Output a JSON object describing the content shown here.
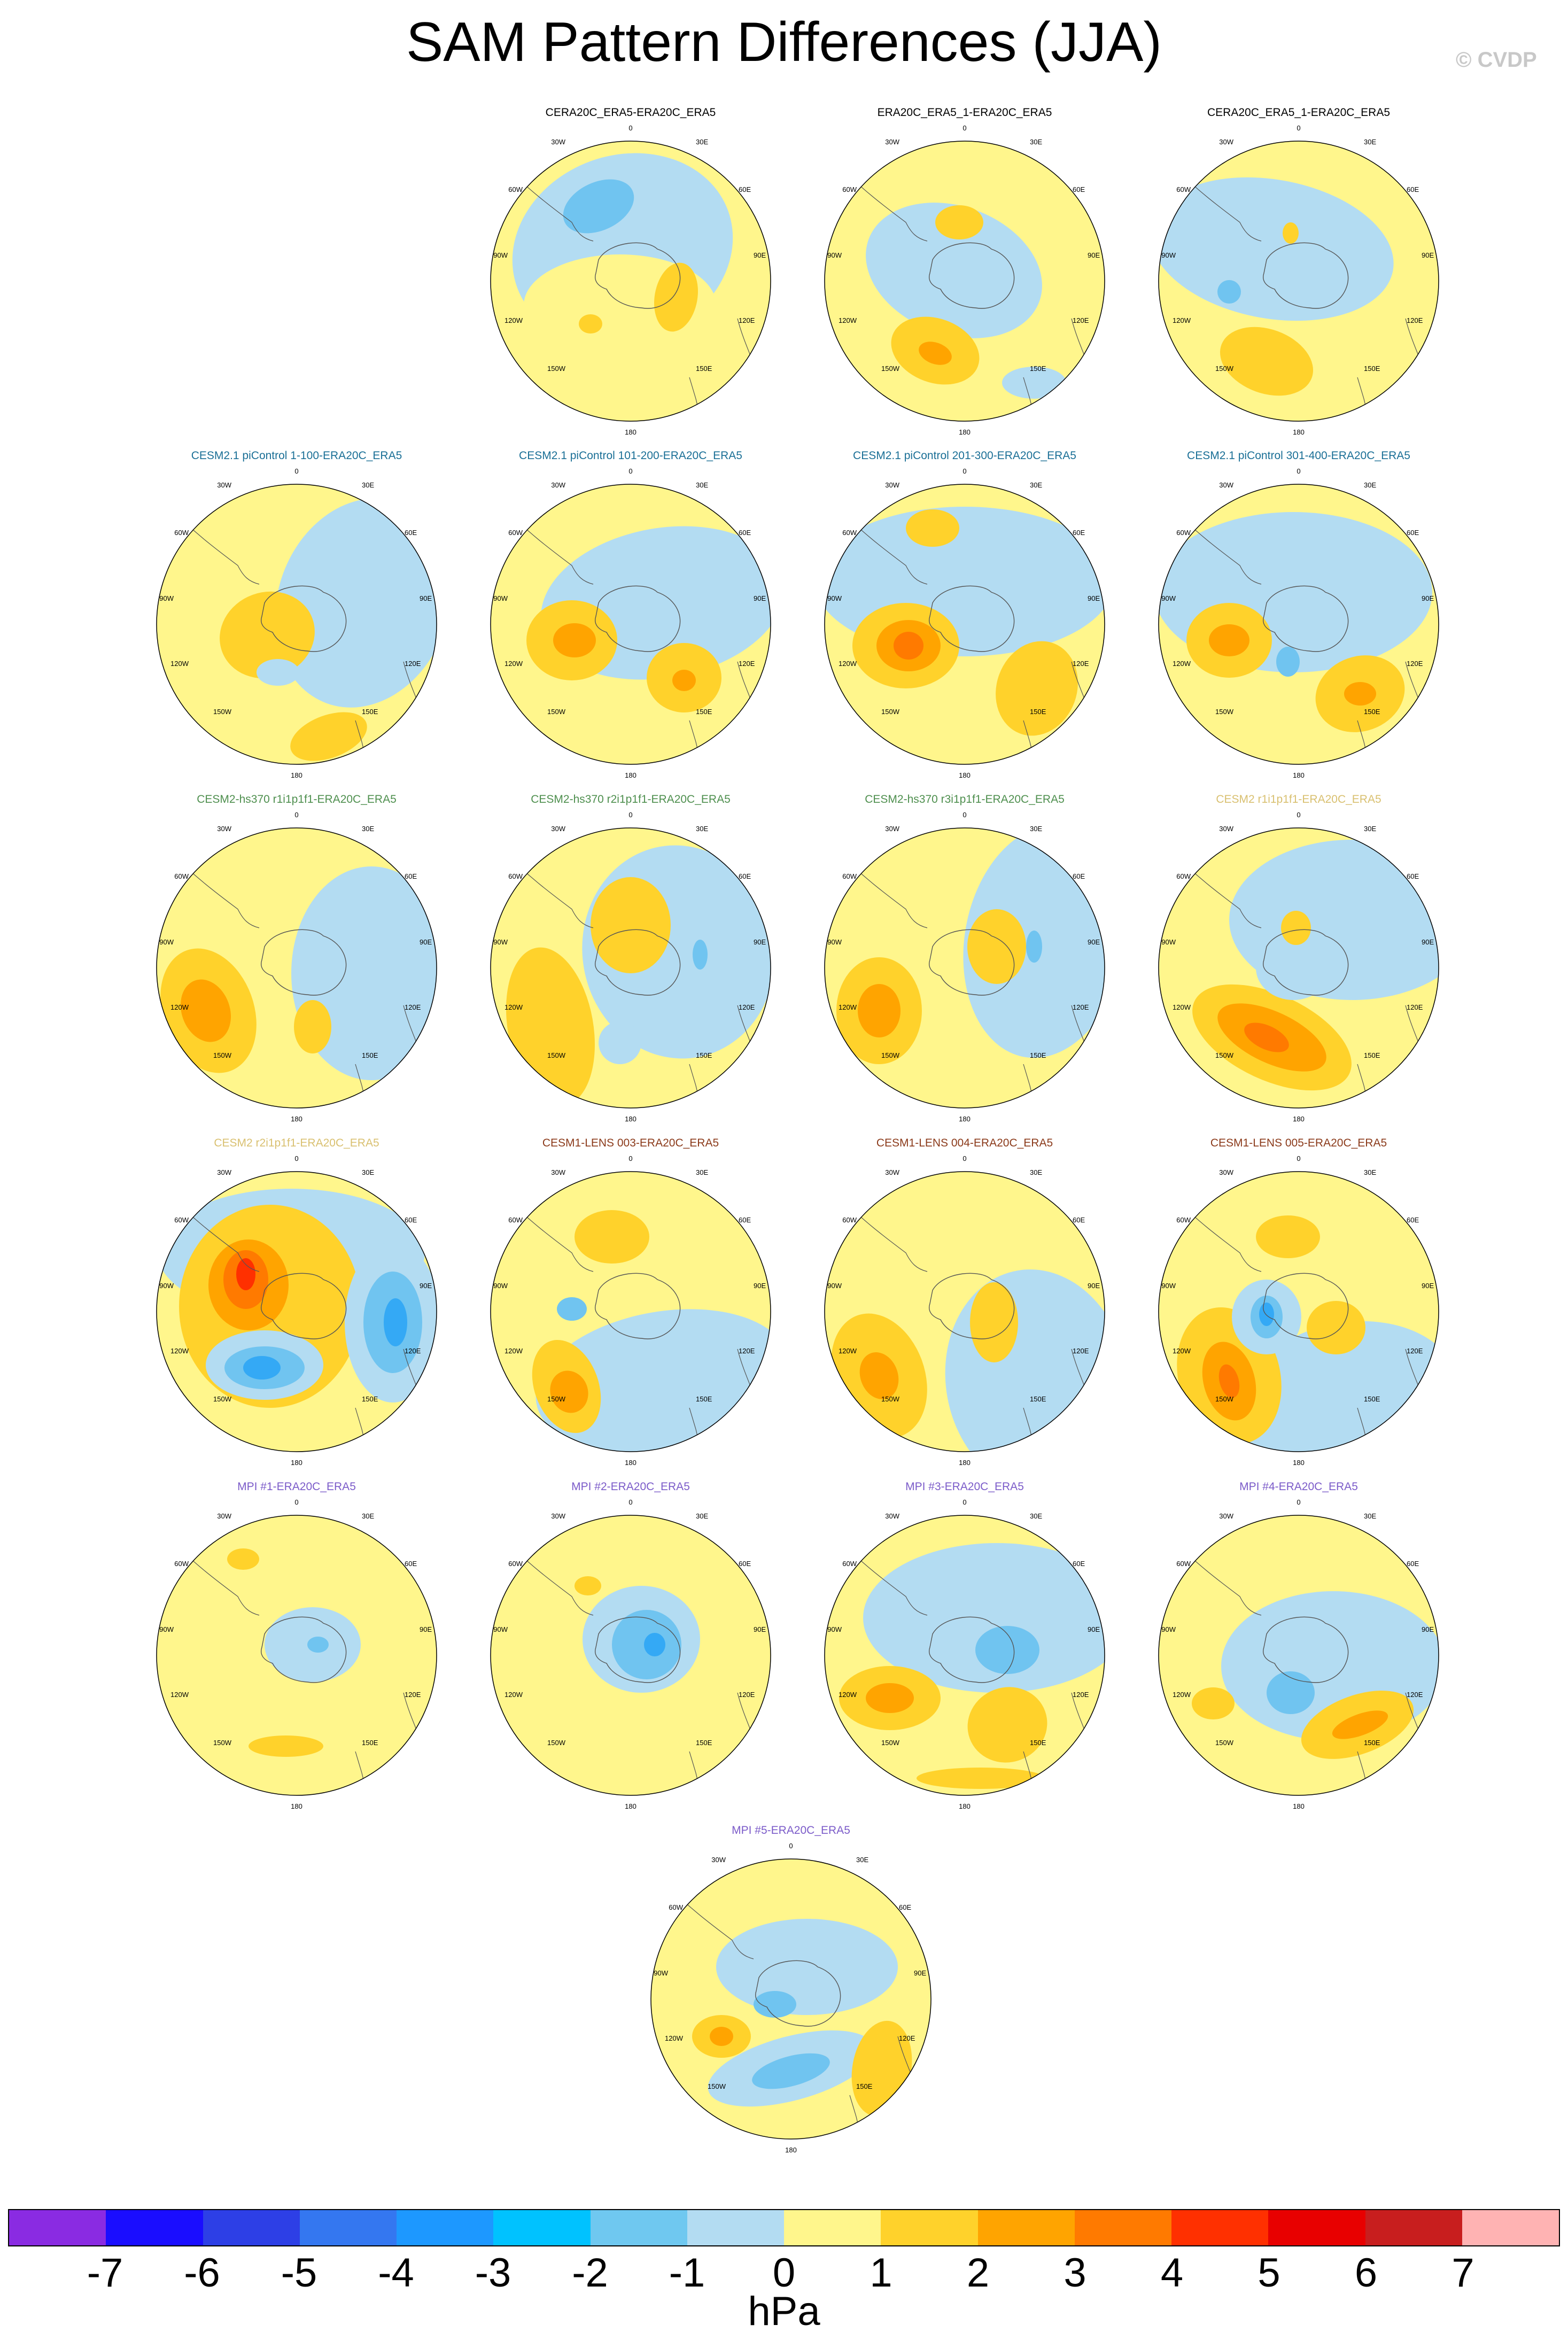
{
  "title": "SAM Pattern Differences (JJA)",
  "copyright": "© CVDP",
  "axis_labels": [
    "0",
    "30E",
    "60E",
    "90E",
    "120E",
    "150E",
    "180",
    "150W",
    "120W",
    "90W",
    "60W",
    "30W"
  ],
  "colors": {
    "pos_light": "#fff68c",
    "pos_mid": "#ffd22b",
    "pos_strong": "#ffa400",
    "pos_stronger": "#ff7a00",
    "pos_extreme": "#ff3000",
    "neg_light": "#b3dcf2",
    "neg_mid": "#70c4f0",
    "neg_strong": "#34a9f5",
    "neg_stronger": "#1d8aff"
  },
  "panels": [
    {
      "title": "CERA20C_ERA5-ERA20C_ERA5",
      "title_color": "#000000"
    },
    {
      "title": "ERA20C_ERA5_1-ERA20C_ERA5",
      "title_color": "#000000"
    },
    {
      "title": "CERA20C_ERA5_1-ERA20C_ERA5",
      "title_color": "#000000"
    },
    {
      "title": "CESM2.1 piControl 1-100-ERA20C_ERA5",
      "title_color": "#1a6f96"
    },
    {
      "title": "CESM2.1 piControl 101-200-ERA20C_ERA5",
      "title_color": "#1a6f96"
    },
    {
      "title": "CESM2.1 piControl 201-300-ERA20C_ERA5",
      "title_color": "#1a6f96"
    },
    {
      "title": "CESM2.1 piControl 301-400-ERA20C_ERA5",
      "title_color": "#1a6f96"
    },
    {
      "title": "CESM2-hs370 r1i1p1f1-ERA20C_ERA5",
      "title_color": "#4e8f4e"
    },
    {
      "title": "CESM2-hs370 r2i1p1f1-ERA20C_ERA5",
      "title_color": "#4e8f4e"
    },
    {
      "title": "CESM2-hs370 r3i1p1f1-ERA20C_ERA5",
      "title_color": "#4e8f4e"
    },
    {
      "title": "CESM2 r1i1p1f1-ERA20C_ERA5",
      "title_color": "#d9c070"
    },
    {
      "title": "CESM2 r2i1p1f1-ERA20C_ERA5",
      "title_color": "#d9c070"
    },
    {
      "title": "CESM1-LENS 003-ERA20C_ERA5",
      "title_color": "#8b3a1a"
    },
    {
      "title": "CESM1-LENS 004-ERA20C_ERA5",
      "title_color": "#8b3a1a"
    },
    {
      "title": "CESM1-LENS 005-ERA20C_ERA5",
      "title_color": "#8b3a1a"
    },
    {
      "title": "MPI #1-ERA20C_ERA5",
      "title_color": "#7b5bc9"
    },
    {
      "title": "MPI #2-ERA20C_ERA5",
      "title_color": "#7b5bc9"
    },
    {
      "title": "MPI #3-ERA20C_ERA5",
      "title_color": "#7b5bc9"
    },
    {
      "title": "MPI #4-ERA20C_ERA5",
      "title_color": "#7b5bc9"
    },
    {
      "title": "MPI #5-ERA20C_ERA5",
      "title_color": "#7b5bc9"
    }
  ],
  "colorbar": {
    "unit": "hPa",
    "ticks": [
      "-7",
      "-6",
      "-5",
      "-4",
      "-3",
      "-2",
      "-1",
      "0",
      "1",
      "2",
      "3",
      "4",
      "5",
      "6",
      "7"
    ],
    "colors": [
      "#8a2be2",
      "#1a0dff",
      "#2d3fe6",
      "#3477f0",
      "#1d98ff",
      "#00c2ff",
      "#6fc8f0",
      "#b3dcf2",
      "#fff68c",
      "#ffd22b",
      "#ffa400",
      "#ff7a00",
      "#ff3000",
      "#e80000",
      "#c81e1e",
      "#ffb3b3"
    ]
  }
}
